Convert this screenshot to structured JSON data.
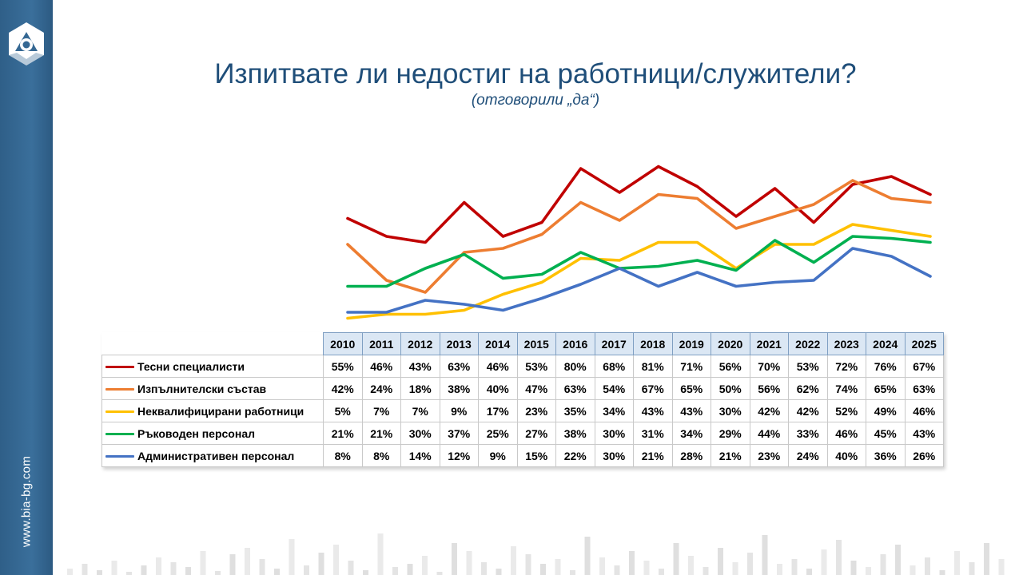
{
  "header": {
    "title": "Изпитвате ли недостиг на работници/служители?",
    "subtitle": "(отговорили „да“)"
  },
  "sidebar": {
    "url": "www.bia-bg.com"
  },
  "chart_data": {
    "type": "line",
    "title": "Изпитвате ли недостиг на работници/служители?",
    "subtitle": "(отговорили „да“)",
    "x": [
      "2010",
      "2011",
      "2012",
      "2013",
      "2014",
      "2015",
      "2016",
      "2017",
      "2018",
      "2019",
      "2020",
      "2021",
      "2022",
      "2023",
      "2024",
      "2025"
    ],
    "ylim": [
      0,
      100
    ],
    "grid": false,
    "legend": "data-table-left",
    "series": [
      {
        "name": "Тесни специалисти",
        "color": "#c00000",
        "values": [
          55,
          46,
          43,
          63,
          46,
          53,
          80,
          68,
          81,
          71,
          56,
          70,
          53,
          72,
          76,
          67
        ],
        "labels": [
          "55%",
          "46%",
          "43%",
          "63%",
          "46%",
          "53%",
          "80%",
          "68%",
          "81%",
          "71%",
          "56%",
          "70%",
          "53%",
          "72%",
          "76%",
          "67%"
        ]
      },
      {
        "name": "Изпълнителски състав",
        "color": "#ed7d31",
        "values": [
          42,
          24,
          18,
          38,
          40,
          47,
          63,
          54,
          67,
          65,
          50,
          56,
          62,
          74,
          65,
          63
        ],
        "labels": [
          "42%",
          "24%",
          "18%",
          "38%",
          "40%",
          "47%",
          "63%",
          "54%",
          "67%",
          "65%",
          "50%",
          "56%",
          "62%",
          "74%",
          "65%",
          "63%"
        ]
      },
      {
        "name": "Неквалифицирани работници",
        "color": "#ffc000",
        "values": [
          5,
          7,
          7,
          9,
          17,
          23,
          35,
          34,
          43,
          43,
          30,
          42,
          42,
          52,
          49,
          46
        ],
        "labels": [
          "5%",
          "7%",
          "7%",
          "9%",
          "17%",
          "23%",
          "35%",
          "34%",
          "43%",
          "43%",
          "30%",
          "42%",
          "42%",
          "52%",
          "49%",
          "46%"
        ]
      },
      {
        "name": "Ръководен персонал",
        "color": "#00b050",
        "values": [
          21,
          21,
          30,
          37,
          25,
          27,
          38,
          30,
          31,
          34,
          29,
          44,
          33,
          46,
          45,
          43
        ],
        "labels": [
          "21%",
          "21%",
          "30%",
          "37%",
          "25%",
          "27%",
          "38%",
          "30%",
          "31%",
          "34%",
          "29%",
          "44%",
          "33%",
          "46%",
          "45%",
          "43%"
        ]
      },
      {
        "name": "Административен персонал",
        "color": "#4472c4",
        "values": [
          8,
          8,
          14,
          12,
          9,
          15,
          22,
          30,
          21,
          28,
          21,
          23,
          24,
          40,
          36,
          26
        ],
        "labels": [
          "8%",
          "8%",
          "14%",
          "12%",
          "9%",
          "15%",
          "22%",
          "30%",
          "21%",
          "28%",
          "21%",
          "23%",
          "24%",
          "40%",
          "36%",
          "26%"
        ]
      }
    ]
  },
  "colors": {
    "sidebar": "#356893",
    "title": "#1f4e79",
    "header_fill": "#dbe7f4"
  }
}
